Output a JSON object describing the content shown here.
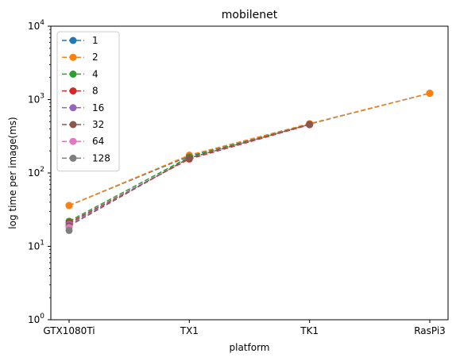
{
  "chart_data": {
    "type": "line",
    "title": "mobilenet",
    "xlabel": "platform",
    "ylabel": "log time per image(ms)",
    "categories": [
      "GTX1080Ti",
      "TX1",
      "TK1",
      "RasPi3"
    ],
    "yscale": "log",
    "ylim": [
      1,
      10000
    ],
    "yticks": [
      1,
      10,
      100,
      1000,
      10000
    ],
    "ytick_base": "10",
    "ytick_exponents": [
      "0",
      "1",
      "2",
      "3",
      "4"
    ],
    "legend_position": "upper-left",
    "grid": false,
    "line_style": "dashed",
    "marker": "circle",
    "series": [
      {
        "name": "1",
        "color": "#1f77b4",
        "values": [
          36,
          170,
          465,
          1220
        ]
      },
      {
        "name": "2",
        "color": "#ff7f0e",
        "values": [
          36,
          175,
          470,
          1220
        ]
      },
      {
        "name": "4",
        "color": "#2ca02c",
        "values": [
          22,
          165,
          460,
          null
        ]
      },
      {
        "name": "8",
        "color": "#d62728",
        "values": [
          21,
          155,
          455,
          null
        ]
      },
      {
        "name": "16",
        "color": "#9467bd",
        "values": [
          20,
          160,
          460,
          null
        ]
      },
      {
        "name": "32",
        "color": "#8c564b",
        "values": [
          19,
          160,
          460,
          null
        ]
      },
      {
        "name": "64",
        "color": "#e377c2",
        "values": [
          18,
          null,
          null,
          null
        ]
      },
      {
        "name": "128",
        "color": "#7f7f7f",
        "values": [
          16.5,
          null,
          null,
          null
        ]
      }
    ]
  }
}
